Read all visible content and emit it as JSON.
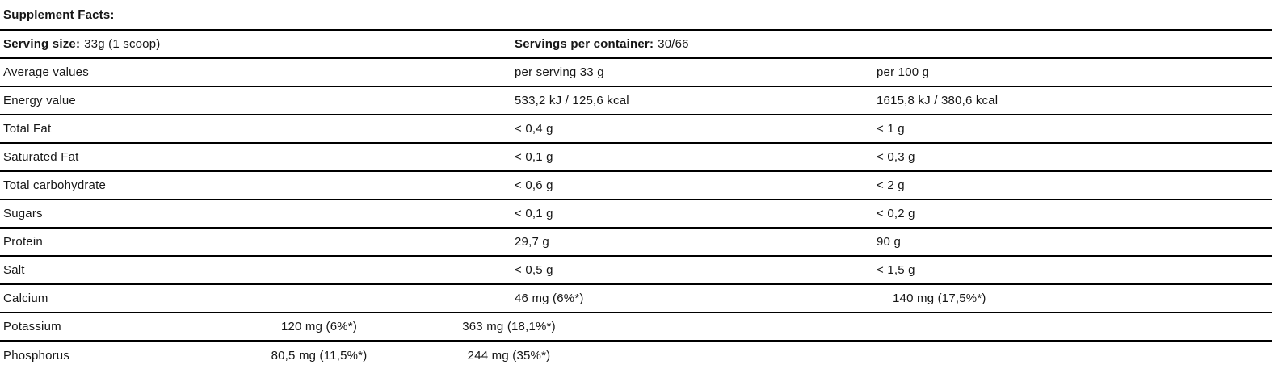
{
  "title": "Supplement Facts:",
  "serving": {
    "size_label": "Serving size:",
    "size_value": "33g (1 scoop)",
    "per_container_label": "Servings per container:",
    "per_container_value": "30/66"
  },
  "columns": {
    "header_label": "Average values",
    "per_serving": "per serving 33 g",
    "per_100g": "per 100 g"
  },
  "rows": [
    {
      "label": "Energy value",
      "per_serving": "533,2 kJ / 125,6 kcal",
      "per_100g": "1615,8 kJ / 380,6 kcal"
    },
    {
      "label": "Total Fat",
      "per_serving": "< 0,4 g",
      "per_100g": "< 1 g"
    },
    {
      "label": "Saturated Fat",
      "per_serving": "< 0,1 g",
      "per_100g": "< 0,3 g"
    },
    {
      "label": "Total carbohydrate",
      "per_serving": "< 0,6 g",
      "per_100g": "< 2 g"
    },
    {
      "label": "Sugars",
      "per_serving": "< 0,1 g",
      "per_100g": "< 0,2 g"
    },
    {
      "label": "Protein",
      "per_serving": "29,7 g",
      "per_100g": "90 g"
    },
    {
      "label": "Salt",
      "per_serving": "< 0,5 g",
      "per_100g": "< 1,5 g"
    },
    {
      "label": "Calcium",
      "per_serving": "46 mg (6%*)",
      "per_100g": "140 mg (17,5%*)"
    }
  ],
  "minerals": [
    {
      "label": "Potassium",
      "per_serving": "120 mg (6%*)",
      "per_100g": "363 mg (18,1%*)"
    },
    {
      "label": "Phosphorus",
      "per_serving": "80,5 mg (11,5%*)",
      "per_100g": "244 mg (35%*)"
    }
  ],
  "colors": {
    "text": "#161616",
    "line": "#000000",
    "background": "#ffffff"
  }
}
